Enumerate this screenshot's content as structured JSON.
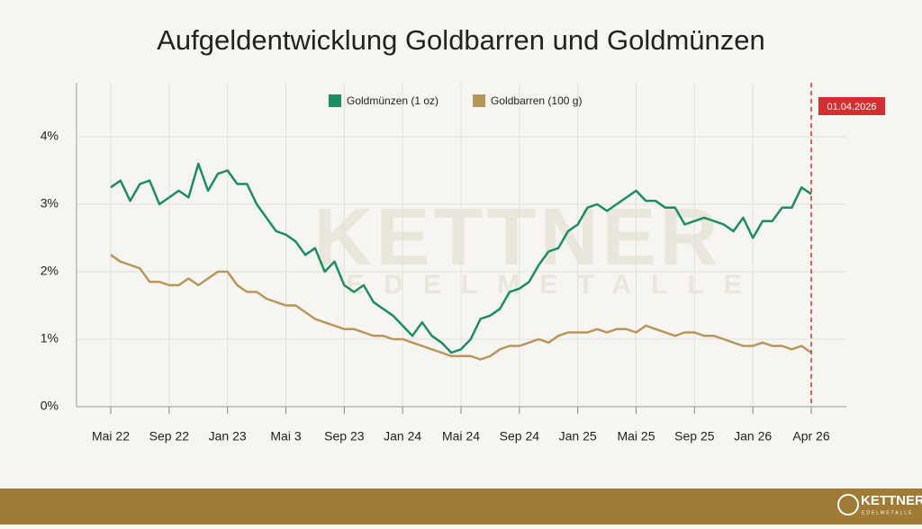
{
  "chart_data": {
    "type": "line",
    "title": "Aufgeldentwicklung Goldbarren und Goldmünzen",
    "categories": [
      "Mai 22",
      null,
      null,
      null,
      null,
      null,
      "Sep 22",
      null,
      null,
      null,
      null,
      null,
      "Jan 23",
      null,
      null,
      null,
      null,
      null,
      "Mai 3",
      null,
      null,
      null,
      null,
      null,
      "Sep 23",
      null,
      null,
      null,
      null,
      null,
      "Jan 24",
      null,
      null,
      null,
      null,
      null,
      "Mai 24",
      null,
      null,
      null,
      null,
      null,
      "Sep 24",
      null,
      null,
      null,
      null,
      null,
      "Jan 25",
      null,
      null,
      null,
      null,
      null,
      "Mai 25",
      null,
      null,
      null,
      null,
      null,
      "Sep 25",
      null,
      null,
      null,
      null,
      null,
      "Jan 26",
      null,
      null,
      null,
      null,
      null,
      "Apr 26"
    ],
    "series": [
      {
        "name": "Goldmünzen (1 oz)",
        "color": "#1a8f5e",
        "values": [
          3.25,
          3.35,
          3.05,
          3.3,
          3.35,
          3.0,
          3.1,
          3.2,
          3.1,
          3.6,
          3.2,
          3.45,
          3.5,
          3.3,
          3.3,
          3.0,
          2.8,
          2.6,
          2.55,
          2.45,
          2.25,
          2.35,
          2.0,
          2.15,
          1.8,
          1.7,
          1.8,
          1.55,
          1.45,
          1.35,
          1.2,
          1.05,
          1.25,
          1.05,
          0.95,
          0.8,
          0.85,
          1.0,
          1.3,
          1.35,
          1.45,
          1.7,
          1.75,
          1.85,
          2.1,
          2.3,
          2.35,
          2.6,
          2.7,
          2.95,
          3.0,
          2.9,
          3.0,
          3.1,
          3.2,
          3.05,
          3.05,
          2.95,
          2.95,
          2.7,
          2.75,
          2.8,
          2.75,
          2.7,
          2.6,
          2.8,
          2.5,
          2.75,
          2.75,
          2.95,
          2.95,
          3.25,
          3.15
        ]
      },
      {
        "name": "Goldbarren (100 g)",
        "color": "#b8965a",
        "values": [
          2.25,
          2.15,
          2.1,
          2.05,
          1.85,
          1.85,
          1.8,
          1.8,
          1.9,
          1.8,
          1.9,
          2.0,
          2.0,
          1.8,
          1.7,
          1.7,
          1.6,
          1.55,
          1.5,
          1.5,
          1.4,
          1.3,
          1.25,
          1.2,
          1.15,
          1.15,
          1.1,
          1.05,
          1.05,
          1.0,
          1.0,
          0.95,
          0.9,
          0.85,
          0.8,
          0.75,
          0.75,
          0.75,
          0.7,
          0.75,
          0.85,
          0.9,
          0.9,
          0.95,
          1.0,
          0.95,
          1.05,
          1.1,
          1.1,
          1.1,
          1.15,
          1.1,
          1.15,
          1.15,
          1.1,
          1.2,
          1.15,
          1.1,
          1.05,
          1.1,
          1.1,
          1.05,
          1.05,
          1.0,
          0.95,
          0.9,
          0.9,
          0.95,
          0.9,
          0.9,
          0.85,
          0.9,
          0.8
        ]
      }
    ],
    "ylim": [
      0,
      4.8
    ],
    "yticks": [
      {
        "value": 0,
        "label": "0%"
      },
      {
        "value": 1,
        "label": "1%"
      },
      {
        "value": 2,
        "label": "2%"
      },
      {
        "value": 3,
        "label": "3%"
      },
      {
        "value": 4,
        "label": "4%"
      }
    ],
    "grid": true,
    "legend": "top",
    "annotation": "01.04.2026",
    "annotation_color": "#d32f2f"
  },
  "footer": {
    "logo": "KETTNER",
    "logo_sub": "EDELMETALLE",
    "color": "#a07b35"
  }
}
